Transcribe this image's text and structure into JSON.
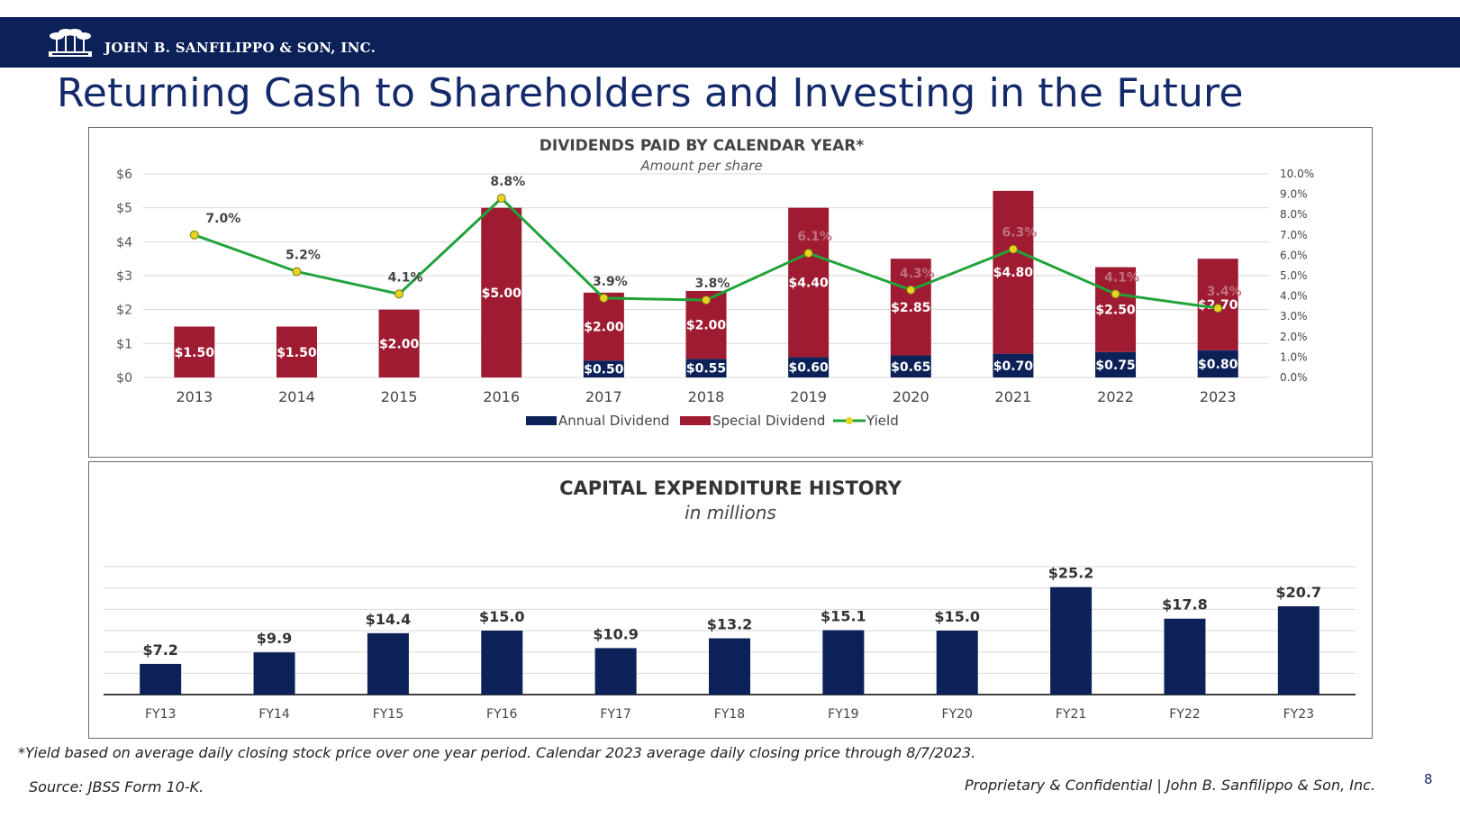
{
  "header": {
    "company": "JOHN B. SANFILIPPO & SON, INC.",
    "logo_icon": "palm-trees-logo-icon",
    "brand_color": "#0c2158"
  },
  "page": {
    "title": "Returning Cash to Shareholders and Investing in the Future",
    "footnote": "*Yield based on average daily closing stock price over one year period. Calendar 2023 average daily closing price through 8/7/2023.",
    "source": "Source: JBSS Form 10-K.",
    "confidential": "Proprietary & Confidential | John B. Sanfilippo & Son, Inc.",
    "page_number": "8"
  },
  "chart_data": [
    {
      "type": "bar",
      "stacked": true,
      "title": "DIVIDENDS PAID BY CALENDAR YEAR*",
      "subtitle": "Amount per share",
      "categories": [
        "2013",
        "2014",
        "2015",
        "2016",
        "2017",
        "2018",
        "2019",
        "2020",
        "2021",
        "2022",
        "2023"
      ],
      "series": [
        {
          "name": "Annual Dividend",
          "color": "#0c2158",
          "values": [
            0,
            0,
            0,
            0,
            0.5,
            0.55,
            0.6,
            0.65,
            0.7,
            0.75,
            0.8
          ],
          "labels": [
            "",
            "",
            "",
            "",
            "$0.50",
            "$0.55",
            "$0.60",
            "$0.65",
            "$0.70",
            "$0.75",
            "$0.80"
          ]
        },
        {
          "name": "Special Dividend",
          "color": "#9e1b32",
          "values": [
            1.5,
            1.5,
            2.0,
            5.0,
            2.0,
            2.0,
            4.4,
            2.85,
            4.8,
            2.5,
            2.7
          ],
          "labels": [
            "$1.50",
            "$1.50",
            "$2.00",
            "$5.00",
            "$2.00",
            "$2.00",
            "$4.40",
            "$2.85",
            "$4.80",
            "$2.50",
            "$2.70"
          ]
        },
        {
          "name": "Yield",
          "type": "line",
          "axis": "right",
          "color": "#22a33a",
          "marker_color": "#e8d31f",
          "values": [
            7.0,
            5.2,
            4.1,
            8.8,
            3.9,
            3.8,
            6.1,
            4.3,
            6.3,
            4.1,
            3.4
          ],
          "labels": [
            "7.0%",
            "5.2%",
            "4.1%",
            "8.8%",
            "3.9%",
            "3.8%",
            "6.1%",
            "4.3%",
            "6.3%",
            "4.1%",
            "3.4%"
          ]
        }
      ],
      "ylim": [
        0,
        6
      ],
      "yticks": [
        "$0",
        "$1",
        "$2",
        "$3",
        "$4",
        "$5",
        "$6"
      ],
      "y2lim": [
        0,
        10
      ],
      "y2ticks": [
        "0.0%",
        "1.0%",
        "2.0%",
        "3.0%",
        "4.0%",
        "5.0%",
        "6.0%",
        "7.0%",
        "8.0%",
        "9.0%",
        "10.0%"
      ],
      "legend": "bottom-center"
    },
    {
      "type": "bar",
      "title": "CAPITAL EXPENDITURE HISTORY",
      "subtitle": "in millions",
      "categories": [
        "FY13",
        "FY14",
        "FY15",
        "FY16",
        "FY17",
        "FY18",
        "FY19",
        "FY20",
        "FY21",
        "FY22",
        "FY23"
      ],
      "values": [
        7.2,
        9.9,
        14.4,
        15.0,
        10.9,
        13.2,
        15.1,
        15.0,
        25.2,
        17.8,
        20.7
      ],
      "labels": [
        "$7.2",
        "$9.9",
        "$14.4",
        "$15.0",
        "$10.9",
        "$13.2",
        "$15.1",
        "$15.0",
        "$25.2",
        "$17.8",
        "$20.7"
      ],
      "color": "#0c2158",
      "ylim": [
        0,
        30
      ],
      "grid": true
    }
  ]
}
